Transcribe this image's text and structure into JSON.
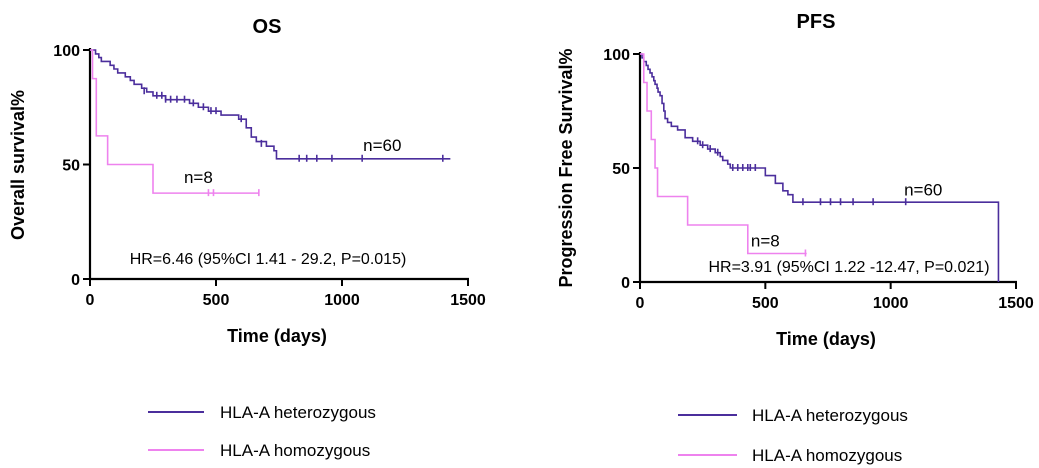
{
  "colors": {
    "heterozygous": "#4b2e9c",
    "homozygous": "#ee82ee",
    "axis": "#000000"
  },
  "chart_data": [
    {
      "type": "line",
      "subtype": "kaplan-meier",
      "title": "OS",
      "xlabel": "Time (days)",
      "ylabel": "Overall survival%",
      "xlim": [
        0,
        1500
      ],
      "ylim": [
        0,
        100
      ],
      "xticks": [
        0,
        500,
        1000,
        1500
      ],
      "yticks": [
        0,
        50,
        100
      ],
      "grid": false,
      "legend": "bottom",
      "annotation": "HR=6.46 (95%CI 1.41 - 29.2, P=0.015)",
      "series": [
        {
          "name": "HLA-A heterozygous",
          "color": "#4b2e9c",
          "n_label": "n=60",
          "n_label_at": [
            1160,
            56
          ],
          "steps": [
            [
              0,
              100
            ],
            [
              15,
              100
            ],
            [
              22,
              98.3
            ],
            [
              35,
              96.7
            ],
            [
              45,
              95
            ],
            [
              80,
              93.3
            ],
            [
              95,
              91.7
            ],
            [
              110,
              90
            ],
            [
              140,
              88.3
            ],
            [
              160,
              86.7
            ],
            [
              175,
              85
            ],
            [
              205,
              83.3
            ],
            [
              225,
              81.7
            ],
            [
              250,
              80
            ],
            [
              300,
              78.3
            ],
            [
              340,
              78.3
            ],
            [
              395,
              76.7
            ],
            [
              430,
              75
            ],
            [
              470,
              73.3
            ],
            [
              520,
              71.6
            ],
            [
              570,
              71.6
            ],
            [
              590,
              69.8
            ],
            [
              620,
              66
            ],
            [
              640,
              62
            ],
            [
              660,
              60
            ],
            [
              700,
              58
            ],
            [
              730,
              56
            ],
            [
              740,
              52.5
            ],
            [
              1430,
              52.5
            ]
          ],
          "censors": [
            [
              215,
              82
            ],
            [
              265,
              80
            ],
            [
              285,
              80
            ],
            [
              300,
              78.3
            ],
            [
              320,
              78.3
            ],
            [
              345,
              78.3
            ],
            [
              375,
              78.3
            ],
            [
              410,
              76.7
            ],
            [
              450,
              75
            ],
            [
              480,
              73.3
            ],
            [
              500,
              73.3
            ],
            [
              600,
              69.8
            ],
            [
              680,
              59
            ],
            [
              830,
              52.5
            ],
            [
              860,
              52.5
            ],
            [
              900,
              52.5
            ],
            [
              960,
              52.5
            ],
            [
              1080,
              52.5
            ],
            [
              1400,
              52.5
            ]
          ]
        },
        {
          "name": "HLA-A homozygous",
          "color": "#ee82ee",
          "n_label": "n=8",
          "n_label_at": [
            430,
            42
          ],
          "steps": [
            [
              0,
              100
            ],
            [
              10,
              87.5
            ],
            [
              25,
              62.5
            ],
            [
              70,
              50
            ],
            [
              250,
              37.5
            ],
            [
              670,
              37.5
            ]
          ],
          "censors": [
            [
              470,
              37.5
            ],
            [
              490,
              37.5
            ],
            [
              670,
              37.5
            ]
          ]
        }
      ]
    },
    {
      "type": "line",
      "subtype": "kaplan-meier",
      "title": "PFS",
      "xlabel": "Time (days)",
      "ylabel": "Progression Free Survival%",
      "xlim": [
        0,
        1500
      ],
      "ylim": [
        0,
        100
      ],
      "xticks": [
        0,
        500,
        1000,
        1500
      ],
      "yticks": [
        0,
        50,
        100
      ],
      "grid": false,
      "legend": "bottom",
      "annotation": "HR=3.91 (95%CI 1.22 -12.47, P=0.021)",
      "series": [
        {
          "name": "HLA-A heterozygous",
          "color": "#4b2e9c",
          "n_label": "n=60",
          "n_label_at": [
            1130,
            38
          ],
          "steps": [
            [
              0,
              100
            ],
            [
              8,
              98.3
            ],
            [
              15,
              96.7
            ],
            [
              25,
              95
            ],
            [
              32,
              93.3
            ],
            [
              40,
              91.7
            ],
            [
              48,
              90
            ],
            [
              55,
              88.3
            ],
            [
              60,
              86.7
            ],
            [
              68,
              85
            ],
            [
              72,
              83.3
            ],
            [
              80,
              81.7
            ],
            [
              88,
              78.3
            ],
            [
              95,
              75
            ],
            [
              100,
              71.7
            ],
            [
              110,
              70
            ],
            [
              125,
              68.3
            ],
            [
              150,
              66.7
            ],
            [
              180,
              63.3
            ],
            [
              210,
              61.7
            ],
            [
              240,
              60
            ],
            [
              270,
              58.3
            ],
            [
              300,
              56.7
            ],
            [
              320,
              55
            ],
            [
              330,
              53.3
            ],
            [
              350,
              51.7
            ],
            [
              360,
              50
            ],
            [
              450,
              50
            ],
            [
              500,
              46.7
            ],
            [
              540,
              43.3
            ],
            [
              570,
              40
            ],
            [
              590,
              38.3
            ],
            [
              610,
              35
            ],
            [
              1430,
              35
            ],
            [
              1430,
              0
            ]
          ],
          "censors": [
            [
              230,
              61.7
            ],
            [
              250,
              60
            ],
            [
              280,
              58.3
            ],
            [
              310,
              56.7
            ],
            [
              370,
              50
            ],
            [
              390,
              50
            ],
            [
              410,
              50
            ],
            [
              430,
              50
            ],
            [
              440,
              50
            ],
            [
              460,
              50
            ],
            [
              650,
              35
            ],
            [
              720,
              35
            ],
            [
              760,
              35
            ],
            [
              800,
              35
            ],
            [
              850,
              35
            ],
            [
              930,
              35
            ],
            [
              1060,
              35
            ]
          ]
        },
        {
          "name": "HLA-A homozygous",
          "color": "#ee82ee",
          "n_label": "n=8",
          "n_label_at": [
            500,
            15.5
          ],
          "steps": [
            [
              0,
              100
            ],
            [
              15,
              87.5
            ],
            [
              28,
              75
            ],
            [
              45,
              62.5
            ],
            [
              60,
              50
            ],
            [
              70,
              37.5
            ],
            [
              190,
              25
            ],
            [
              430,
              12.5
            ],
            [
              665,
              12.5
            ]
          ],
          "censors": [
            [
              660,
              12.5
            ]
          ]
        }
      ]
    }
  ]
}
